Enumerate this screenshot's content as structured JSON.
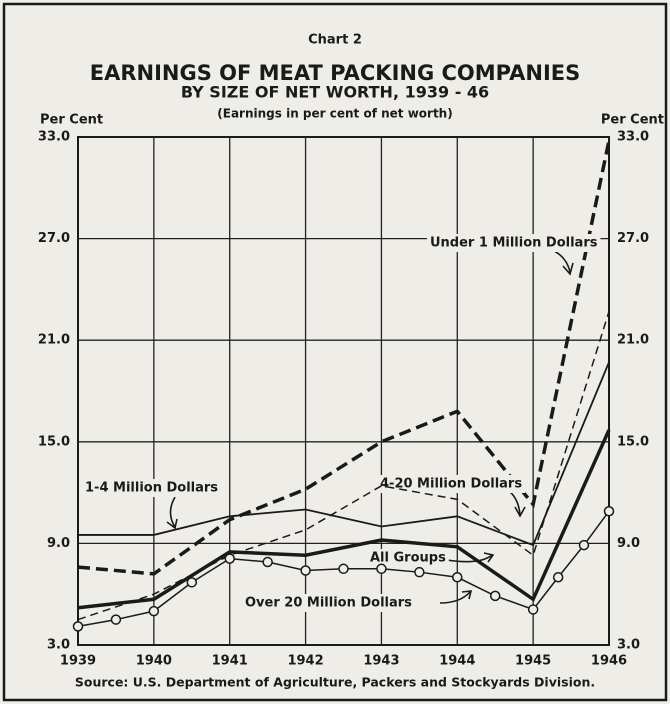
{
  "chart_data": {
    "type": "line",
    "label_top": "Chart 2",
    "title": "EARNINGS OF MEAT PACKING COMPANIES",
    "subtitle": "BY SIZE OF NET WORTH, 1939 - 46",
    "note": "(Earnings in per cent of net worth)",
    "ylabel": "Per Cent",
    "y2label": "Per Cent",
    "source": "Source: U.S. Department of Agriculture, Packers and Stockyards Division.",
    "xlim": [
      1939,
      1946
    ],
    "xticks": [
      1939,
      1940,
      1941,
      1942,
      1943,
      1944,
      1945,
      1946
    ],
    "ylim": [
      3,
      33
    ],
    "yticks": [
      {
        "value": 3,
        "label": "3.0"
      },
      {
        "value": 9,
        "label": "9.0"
      },
      {
        "value": 15,
        "label": "15.0"
      },
      {
        "value": 21,
        "label": "21.0"
      },
      {
        "value": 27,
        "label": "27.0"
      },
      {
        "value": 33,
        "label": "33.0"
      }
    ],
    "grid": true,
    "series": [
      {
        "name": "Under 1 Million Dollars",
        "color": "#1a1a1a",
        "dashed": true,
        "linewidth": 3.5,
        "x": [
          1939,
          1940,
          1941,
          1942,
          1943,
          1944,
          1945,
          1946
        ],
        "values": [
          7.6,
          7.2,
          10.4,
          12.2,
          15.0,
          16.8,
          11.3,
          32.8
        ]
      },
      {
        "name": "4-20 Million Dollars",
        "color": "#1a1a1a",
        "dashed": false,
        "linewidth": 1.8,
        "x": [
          1939,
          1940,
          1941,
          1942,
          1943,
          1944,
          1945,
          1946
        ],
        "values": [
          9.5,
          9.5,
          10.6,
          11.0,
          10.0,
          10.6,
          8.9,
          19.7
        ]
      },
      {
        "name": "1-4 Million Dollars",
        "color": "#1a1a1a",
        "dashed": true,
        "linewidth": 1.5,
        "x": [
          1939,
          1940,
          1941,
          1942,
          1943,
          1944,
          1945,
          1946
        ],
        "values": [
          4.5,
          6.0,
          8.3,
          9.8,
          12.4,
          11.6,
          8.3,
          22.7
        ]
      },
      {
        "name": "All Groups",
        "color": "#1a1a1a",
        "dashed": false,
        "linewidth": 3.5,
        "x": [
          1939,
          1940,
          1941,
          1942,
          1943,
          1944,
          1945,
          1946
        ],
        "values": [
          5.2,
          5.7,
          8.5,
          8.3,
          9.2,
          8.8,
          5.7,
          15.7
        ]
      },
      {
        "name": "Over 20 Million Dollars",
        "color": "#1a1a1a",
        "dashed": false,
        "linewidth": 1.5,
        "marker": "circle",
        "x": [
          1939,
          1939.5,
          1940,
          1940.5,
          1941,
          1941.5,
          1942,
          1942.5,
          1943,
          1943.5,
          1944,
          1944.5,
          1945,
          1945.33,
          1945.67,
          1946
        ],
        "values": [
          4.1,
          4.5,
          5.0,
          6.7,
          8.1,
          7.9,
          7.4,
          7.5,
          7.5,
          7.3,
          7.0,
          5.9,
          5.1,
          7.0,
          8.9,
          10.9
        ]
      }
    ]
  }
}
